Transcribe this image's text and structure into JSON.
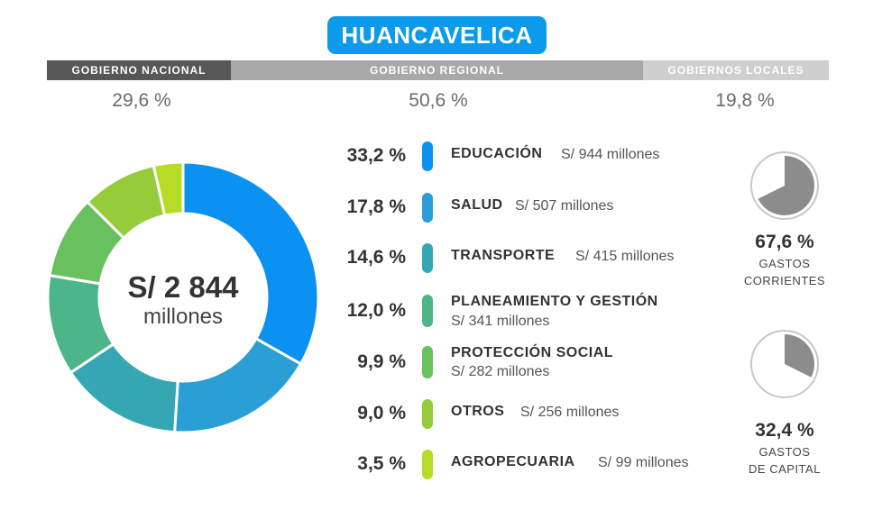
{
  "title": "HUANCAVELICA",
  "government": {
    "national": {
      "label": "GOBIERNO NACIONAL",
      "pct": "29,6 %"
    },
    "regional": {
      "label": "GOBIERNO REGIONAL",
      "pct": "50,6  %"
    },
    "local": {
      "label": "GOBIERNOS LOCALES",
      "pct": "19,8 %"
    }
  },
  "total": {
    "amount": "S/ 2 844",
    "unit": "millones"
  },
  "colors": {
    "educacion": "#0b92f0",
    "salud": "#2a9fd6",
    "transporte": "#34a7b2",
    "planeamiento": "#4cb58a",
    "proteccion": "#69c05f",
    "otros": "#96cc3a",
    "agropecuaria": "#b7dc25",
    "pie_fill": "#8c8c8c",
    "pie_bg": "#ffffff"
  },
  "categories": [
    {
      "pct": "33,2 %",
      "name": "EDUCACIÓN",
      "amount": "S/ 944 millones"
    },
    {
      "pct": "17,8 %",
      "name": "SALUD",
      "amount": "S/ 507 millones"
    },
    {
      "pct": "14,6 %",
      "name": "TRANSPORTE",
      "amount": "S/ 415 millones"
    },
    {
      "pct": "12,0 %",
      "name": "PLANEAMIENTO Y GESTIÓN",
      "amount": "S/ 341 millones"
    },
    {
      "pct": "9,9 %",
      "name": "PROTECCIÓN SOCIAL",
      "amount": "S/ 282 millones"
    },
    {
      "pct": "9,0 %",
      "name": "OTROS",
      "amount": "S/ 256 millones"
    },
    {
      "pct": "3,5 %",
      "name": "AGROPECUARIA",
      "amount": "S/ 99 millones"
    }
  ],
  "spending": {
    "current": {
      "pct": "67,6 %",
      "label1": "GASTOS",
      "label2": "CORRIENTES"
    },
    "capital": {
      "pct": "32,4 %",
      "label1": "GASTOS",
      "label2": "DE CAPITAL"
    }
  },
  "chart_data": [
    {
      "type": "pie",
      "subtype": "donut",
      "categories": [
        "EDUCACIÓN",
        "SALUD",
        "TRANSPORTE",
        "PLANEAMIENTO Y GESTIÓN",
        "PROTECCIÓN SOCIAL",
        "OTROS",
        "AGROPECUARIA"
      ],
      "values": [
        33.2,
        17.8,
        14.6,
        12.0,
        9.9,
        9.0,
        3.5
      ],
      "title": ""
    },
    {
      "type": "pie",
      "categories": [
        "GASTOS CORRIENTES"
      ],
      "values": [
        67.6
      ]
    },
    {
      "type": "pie",
      "categories": [
        "GASTOS DE CAPITAL"
      ],
      "values": [
        32.4
      ]
    }
  ]
}
